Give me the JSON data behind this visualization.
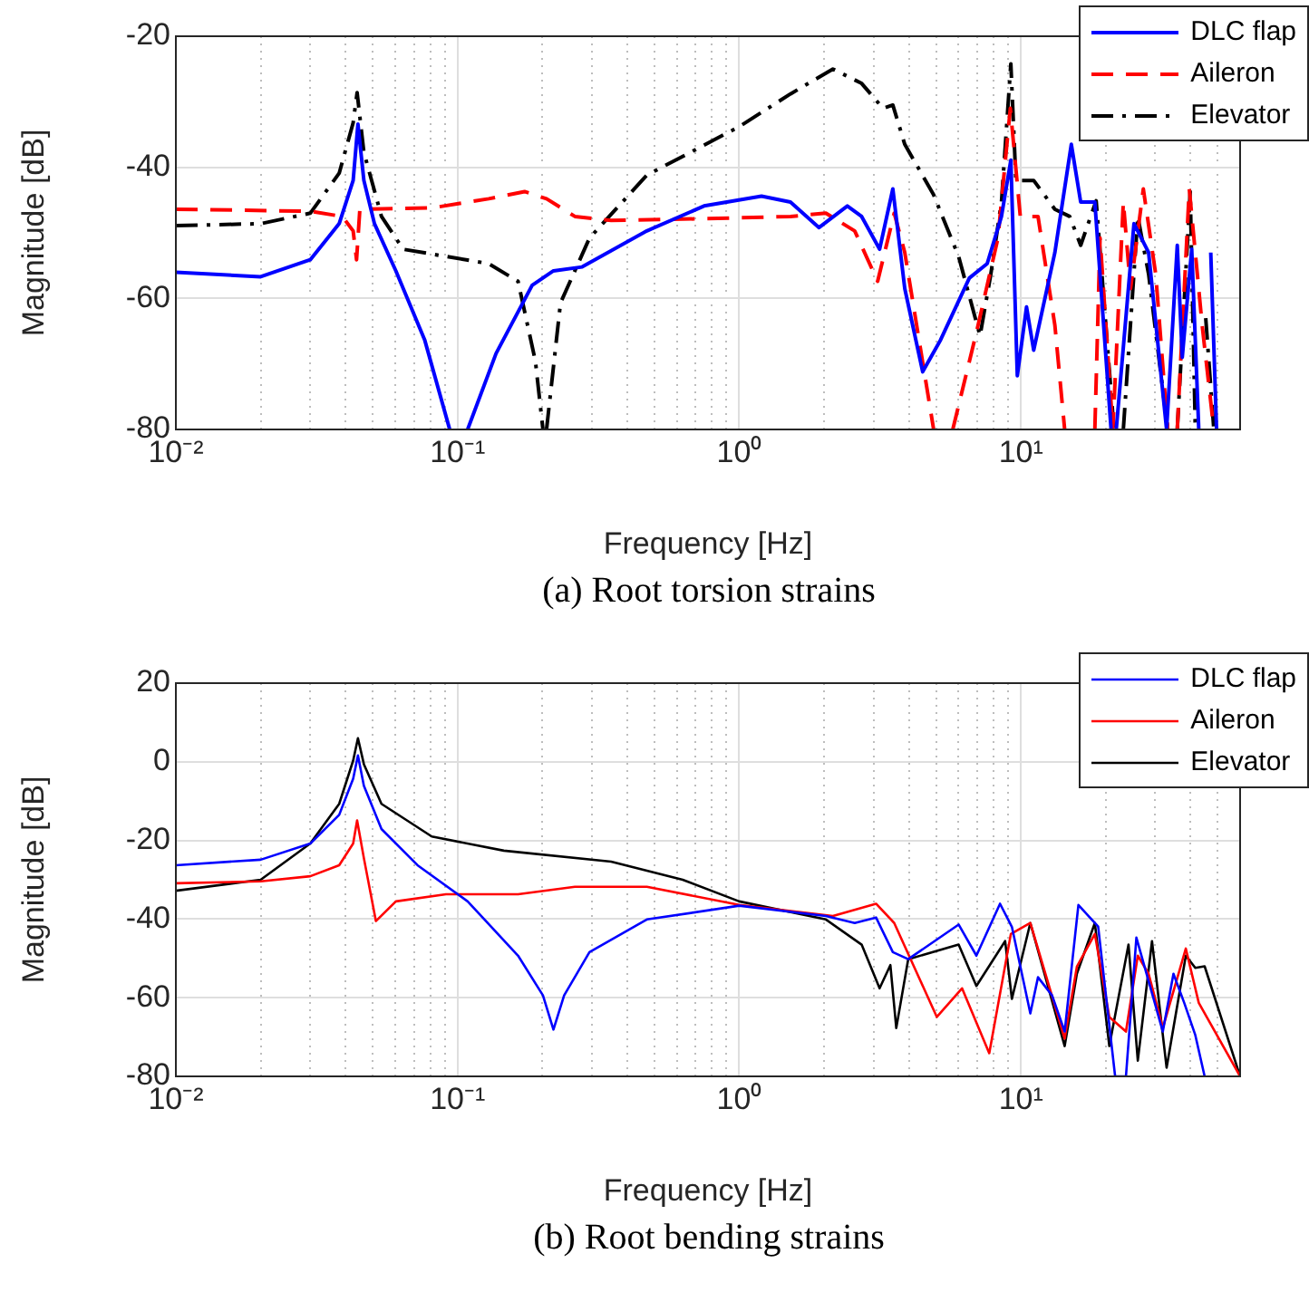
{
  "chart_data": [
    {
      "type": "line",
      "title": "(a) Root torsion strains",
      "xlabel": "Frequency [Hz]",
      "ylabel": "Magnitude [dB]",
      "log": "x",
      "grid": true,
      "legend": "top right",
      "xlim": [
        0.01,
        60
      ],
      "ylim": [
        -80,
        -20
      ],
      "xticks": [
        {
          "value": 0.01,
          "label": "10⁻²"
        },
        {
          "value": 0.02,
          "label": null
        },
        {
          "value": 0.03,
          "label": null
        },
        {
          "value": 0.04,
          "label": null
        },
        {
          "value": 0.05,
          "label": null
        },
        {
          "value": 0.06,
          "label": null
        },
        {
          "value": 0.07,
          "label": null
        },
        {
          "value": 0.08,
          "label": null
        },
        {
          "value": 0.09,
          "label": null
        },
        {
          "value": 0.1,
          "label": "10⁻¹"
        },
        {
          "value": 0.2,
          "label": null
        },
        {
          "value": 0.3,
          "label": null
        },
        {
          "value": 0.4,
          "label": null
        },
        {
          "value": 0.5,
          "label": null
        },
        {
          "value": 0.6,
          "label": null
        },
        {
          "value": 0.7,
          "label": null
        },
        {
          "value": 0.8,
          "label": null
        },
        {
          "value": 0.9,
          "label": null
        },
        {
          "value": 1,
          "label": "10⁰"
        },
        {
          "value": 2,
          "label": null
        },
        {
          "value": 3,
          "label": null
        },
        {
          "value": 4,
          "label": null
        },
        {
          "value": 5,
          "label": null
        },
        {
          "value": 6,
          "label": null
        },
        {
          "value": 7,
          "label": null
        },
        {
          "value": 8,
          "label": null
        },
        {
          "value": 9,
          "label": null
        },
        {
          "value": 10,
          "label": "10¹"
        },
        {
          "value": 20,
          "label": null
        },
        {
          "value": 30,
          "label": null
        },
        {
          "value": 40,
          "label": null
        },
        {
          "value": 50,
          "label": null
        }
      ],
      "yticks": [
        -80,
        -60,
        -40,
        -20
      ],
      "series": [
        {
          "name": "DLC flap",
          "color": "#0000ff",
          "line_style": "solid",
          "x": [
            0.01,
            0.02,
            0.03,
            0.038,
            0.0426,
            0.0443,
            0.0465,
            0.0507,
            0.0604,
            0.0764,
            0.0938,
            0.1,
            0.1086,
            0.137,
            0.184,
            0.219,
            0.277,
            0.47,
            0.75,
            1.2,
            1.52,
            1.92,
            2.42,
            2.72,
            3.15,
            3.51,
            3.87,
            4.48,
            5.19,
            6.56,
            7.59,
            8.53,
            9.21,
            9.71,
            10.47,
            11.1,
            13.2,
            15.1,
            16.3,
            18.3,
            20.9,
            21.3,
            21.8,
            25.2,
            28.4,
            32.9,
            35.9,
            37.4,
            40.4,
            42.8,
            45,
            47.2,
            49.5
          ],
          "values": [
            -56,
            -56.7,
            -54.1,
            -48.6,
            -42,
            -33.4,
            -42,
            -48.6,
            -55.8,
            -66.3,
            -80,
            null,
            -80,
            -68.4,
            -58,
            -55.8,
            -55.2,
            -49.7,
            -45.9,
            -44.4,
            -45.3,
            -49.2,
            -45.9,
            -47.5,
            -52.5,
            -43.3,
            -58.5,
            -71.2,
            -66.3,
            -56.9,
            -54.7,
            -47.5,
            -38.9,
            -71.8,
            -61.3,
            -67.9,
            -53,
            -36.5,
            -45.3,
            -45.3,
            -80,
            null,
            -80,
            -48.6,
            -53,
            -80,
            -51.9,
            -69,
            -52.5,
            -80,
            null,
            -53,
            -80
          ]
        },
        {
          "name": "Aileron",
          "color": "#ff0000",
          "line_style": "dashed",
          "x": [
            0.01,
            0.03,
            0.039,
            0.0426,
            0.0438,
            0.045,
            0.081,
            0.129,
            0.173,
            0.207,
            0.261,
            0.351,
            0.84,
            1.52,
            2.03,
            2.57,
            3.1,
            3.55,
            3.87,
            4.9,
            5.3,
            5.73,
            6.95,
            8.29,
            9.17,
            9.95,
            11.5,
            13.2,
            14.3,
            16,
            18.3,
            19.1,
            21.2,
            23.1,
            24.5,
            27.2,
            30.1,
            33.2,
            34.5,
            35.9,
            39.6,
            44,
            48.4
          ],
          "values": [
            -46.4,
            -46.7,
            -47.5,
            -49.7,
            -54.1,
            -46.4,
            -46.2,
            -44.8,
            -43.7,
            -44.8,
            -47.5,
            -48.1,
            -47.8,
            -47.5,
            -47,
            -49.7,
            -57.4,
            -47,
            -53,
            -80,
            null,
            -80,
            -65.2,
            -50.8,
            -31,
            -47.5,
            -47.5,
            -64.1,
            -80,
            null,
            -80,
            -50.8,
            -80,
            -45.3,
            -58.5,
            -43.3,
            -56.3,
            -80,
            null,
            -80,
            -43.3,
            -64.1,
            -80
          ]
        },
        {
          "name": "Elevator",
          "color": "#000000",
          "line_style": "dashdot",
          "x": [
            0.01,
            0.02,
            0.03,
            0.038,
            0.0426,
            0.044,
            0.0465,
            0.0537,
            0.0641,
            0.091,
            0.129,
            0.164,
            0.189,
            0.201,
            0.204,
            0.207,
            0.232,
            0.294,
            0.47,
            1,
            1.52,
            2.15,
            2.72,
            3.24,
            3.51,
            3.87,
            4.9,
            6.01,
            7.16,
            7.82,
            8.53,
            9.21,
            9.6,
            11.1,
            13.2,
            14.9,
            16.3,
            18.5,
            21.4,
            22.2,
            23.1,
            26,
            28.4,
            33.2,
            34.5,
            35.9,
            39.9,
            41.6,
            43.4,
            45.3,
            48.4
          ],
          "values": [
            -48.9,
            -48.6,
            -47,
            -40.9,
            -33.2,
            -28.6,
            -37.7,
            -47.5,
            -52.5,
            -53.6,
            -54.7,
            -57.4,
            -69.6,
            -80,
            null,
            -80,
            -60.7,
            -50.8,
            -41.2,
            -33.8,
            -28.8,
            -25,
            -27.2,
            -31,
            -30.5,
            -36.5,
            -44.2,
            -53.6,
            -65.7,
            -56.3,
            -45.3,
            -24.2,
            -42,
            -42,
            -46.4,
            -47.5,
            -51.9,
            -45.1,
            -80,
            null,
            -80,
            -47.5,
            -56.3,
            -80,
            null,
            -80,
            -43.7,
            -80,
            null,
            -63,
            -80
          ]
        }
      ]
    },
    {
      "type": "line",
      "title": "(b) Root bending strains",
      "xlabel": "Frequency [Hz]",
      "ylabel": "Magnitude [dB]",
      "log": "x",
      "grid": true,
      "legend": "top right",
      "xlim": [
        0.01,
        60
      ],
      "ylim": [
        -80,
        20
      ],
      "xticks": [
        {
          "value": 0.01,
          "label": "10⁻²"
        },
        {
          "value": 0.02,
          "label": null
        },
        {
          "value": 0.03,
          "label": null
        },
        {
          "value": 0.04,
          "label": null
        },
        {
          "value": 0.05,
          "label": null
        },
        {
          "value": 0.06,
          "label": null
        },
        {
          "value": 0.07,
          "label": null
        },
        {
          "value": 0.08,
          "label": null
        },
        {
          "value": 0.09,
          "label": null
        },
        {
          "value": 0.1,
          "label": "10⁻¹"
        },
        {
          "value": 0.2,
          "label": null
        },
        {
          "value": 0.3,
          "label": null
        },
        {
          "value": 0.4,
          "label": null
        },
        {
          "value": 0.5,
          "label": null
        },
        {
          "value": 0.6,
          "label": null
        },
        {
          "value": 0.7,
          "label": null
        },
        {
          "value": 0.8,
          "label": null
        },
        {
          "value": 0.9,
          "label": null
        },
        {
          "value": 1,
          "label": "10⁰"
        },
        {
          "value": 2,
          "label": null
        },
        {
          "value": 3,
          "label": null
        },
        {
          "value": 4,
          "label": null
        },
        {
          "value": 5,
          "label": null
        },
        {
          "value": 6,
          "label": null
        },
        {
          "value": 7,
          "label": null
        },
        {
          "value": 8,
          "label": null
        },
        {
          "value": 9,
          "label": null
        },
        {
          "value": 10,
          "label": "10¹"
        },
        {
          "value": 20,
          "label": null
        },
        {
          "value": 30,
          "label": null
        },
        {
          "value": 40,
          "label": null
        },
        {
          "value": 50,
          "label": null
        }
      ],
      "yticks": [
        -80,
        -60,
        -40,
        -20,
        0,
        20
      ],
      "series": [
        {
          "name": "DLC flap",
          "color": "#0000ff",
          "x": [
            0.01,
            0.02,
            0.03,
            0.038,
            0.0426,
            0.0443,
            0.0465,
            0.0537,
            0.0721,
            0.1086,
            0.164,
            0.201,
            0.219,
            0.239,
            0.294,
            0.47,
            1,
            2.03,
            2.57,
            3.06,
            3.51,
            3.98,
            6.01,
            6.95,
            8.43,
            9.29,
            10.8,
            11.5,
            12.9,
            14.3,
            16,
            18.8,
            21.6,
            23.6,
            25.7,
            27.7,
            31.9,
            34.8,
            38,
            41.6,
            44.9
          ],
          "values": [
            -26.3,
            -24.9,
            -20.8,
            -13.5,
            -4.3,
            1.6,
            -6.1,
            -17.1,
            -26.3,
            -35.5,
            -49.3,
            -59.4,
            -68.1,
            -59.4,
            -48.4,
            -40.1,
            -36.6,
            -39.2,
            -41,
            -39.6,
            -48.4,
            -50.2,
            -41.4,
            -49.3,
            -36.1,
            -42,
            -64,
            -54.8,
            -59.4,
            -68.6,
            -36.4,
            -41.9,
            -80,
            -80,
            -44.7,
            -53,
            -68.6,
            -53.9,
            -61.3,
            -69.5,
            -80
          ]
        },
        {
          "name": "Aileron",
          "color": "#ff0000",
          "x": [
            0.01,
            0.02,
            0.03,
            0.038,
            0.0426,
            0.044,
            0.0465,
            0.0513,
            0.0604,
            0.091,
            0.164,
            0.261,
            0.47,
            1,
            2.15,
            3.06,
            3.55,
            5.03,
            6.18,
            7.72,
            9.21,
            10.8,
            14.3,
            15.8,
            18.3,
            20.6,
            23.6,
            26,
            28.4,
            31.9,
            38.5,
            42.8,
            60
          ],
          "values": [
            -30.9,
            -30.4,
            -29.1,
            -26.3,
            -20.8,
            -14.9,
            -24.5,
            -40.5,
            -35.5,
            -33.7,
            -33.7,
            -31.8,
            -31.8,
            -36.4,
            -39.2,
            -36.1,
            -41,
            -64.9,
            -57.6,
            -74.1,
            -43.8,
            -41,
            -70.4,
            -52.1,
            -43.8,
            -64.9,
            -68.6,
            -49.3,
            -53.9,
            -67.7,
            -47.5,
            -61.3,
            -80
          ]
        },
        {
          "name": "Elevator",
          "color": "#000000",
          "x": [
            0.01,
            0.02,
            0.03,
            0.038,
            0.0426,
            0.0443,
            0.0465,
            0.0537,
            0.081,
            0.146,
            0.351,
            0.63,
            1,
            2.03,
            2.72,
            3.15,
            3.44,
            3.61,
            3.98,
            6.01,
            6.95,
            8.79,
            9.29,
            10.8,
            14.3,
            15.8,
            18.3,
            20.6,
            24.1,
            26,
            29.2,
            32.9,
            38.5,
            41.6,
            44.9,
            60
          ],
          "values": [
            -32.8,
            -30,
            -20.8,
            -10.7,
            0.3,
            6,
            -0.6,
            -10.7,
            -19,
            -22.6,
            -25.4,
            -30,
            -35.5,
            -40.1,
            -46.5,
            -57.6,
            -51.7,
            -67.7,
            -50.2,
            -46.5,
            -57,
            -45.6,
            -60.3,
            -41,
            -72.3,
            -53.9,
            -41,
            -72.3,
            -46.5,
            -76,
            -45.6,
            -77.8,
            -49.3,
            -52.4,
            -52,
            -80
          ]
        }
      ]
    }
  ]
}
